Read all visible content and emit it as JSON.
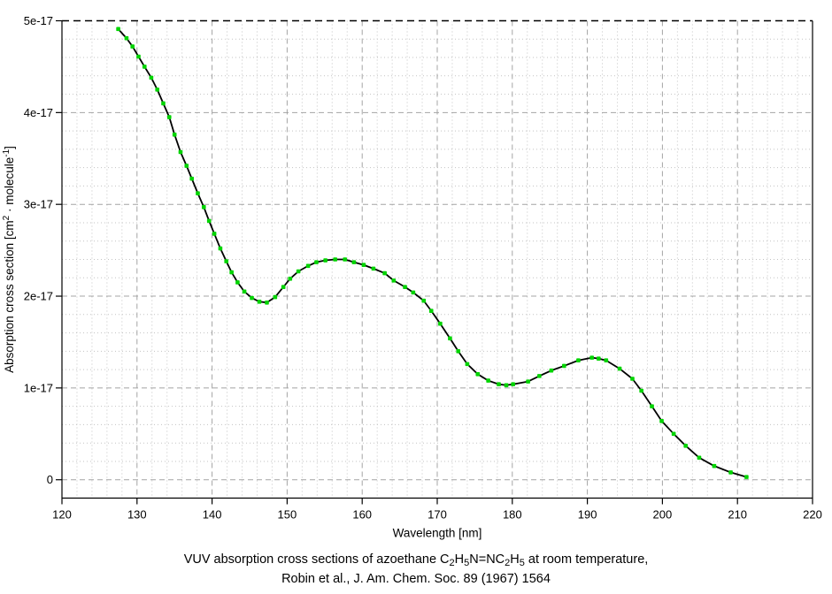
{
  "colors": {
    "background": "#ffffff",
    "axis": "#000000",
    "grid_major": "#a4a4a4",
    "grid_minor": "#c3c3c3",
    "top_border_dash": "#000000",
    "curve": "#000000",
    "marker": "#00d400",
    "text": "#000000"
  },
  "caption": {
    "line1_segments": [
      {
        "t": "VUV absorption cross sections of azoethane C"
      },
      {
        "sub": "2"
      },
      {
        "t": "H"
      },
      {
        "sub": "5"
      },
      {
        "t": "N=NC"
      },
      {
        "sub": "2"
      },
      {
        "t": "H"
      },
      {
        "sub": "5"
      },
      {
        "t": " at room temperature,"
      }
    ],
    "line2": "Robin et al., J. Am. Chem. Soc. 89 (1967) 1564"
  },
  "chart_data": {
    "type": "line",
    "xlabel": "Wavelength [nm]",
    "ylabel_segments": [
      {
        "t": "Absorption cross section [cm"
      },
      {
        "sup": "2"
      },
      {
        "t": " · molecule"
      },
      {
        "sup": "-1"
      },
      {
        "t": "]"
      }
    ],
    "x_range": [
      120,
      220
    ],
    "y_range_displayed": [
      -0.2,
      5.0
    ],
    "y_scale_note": "y values in units of 1e-17",
    "grid": {
      "major_dash": "6,4",
      "minor_dash": "1,3",
      "x_minor_step": 2,
      "y_minor_step": 0.2
    },
    "x_ticks": {
      "values": [
        120,
        130,
        140,
        150,
        160,
        170,
        180,
        190,
        200,
        210,
        220
      ],
      "labels": [
        "120",
        "130",
        "140",
        "150",
        "160",
        "170",
        "180",
        "190",
        "200",
        "210",
        "220"
      ]
    },
    "y_ticks": {
      "values": [
        0,
        1,
        2,
        3,
        4,
        5
      ],
      "labels": [
        "0",
        "1e-17",
        "2e-17",
        "3e-17",
        "4e-17",
        "5e-17"
      ]
    },
    "series": [
      {
        "line_color": "#000000",
        "marker_color": "#00d400",
        "points": [
          [
            127.5,
            4.91
          ],
          [
            128.6,
            4.81
          ],
          [
            129.4,
            4.72
          ],
          [
            130.2,
            4.61
          ],
          [
            131.0,
            4.5
          ],
          [
            131.9,
            4.38
          ],
          [
            132.7,
            4.25
          ],
          [
            133.5,
            4.1
          ],
          [
            134.3,
            3.95
          ],
          [
            135.0,
            3.76
          ],
          [
            135.8,
            3.57
          ],
          [
            136.6,
            3.42
          ],
          [
            137.3,
            3.28
          ],
          [
            138.1,
            3.12
          ],
          [
            138.9,
            2.97
          ],
          [
            139.6,
            2.82
          ],
          [
            140.3,
            2.68
          ],
          [
            141.1,
            2.52
          ],
          [
            141.9,
            2.38
          ],
          [
            142.6,
            2.26
          ],
          [
            143.4,
            2.15
          ],
          [
            144.3,
            2.05
          ],
          [
            145.3,
            1.98
          ],
          [
            146.3,
            1.94
          ],
          [
            147.3,
            1.93
          ],
          [
            148.4,
            1.99
          ],
          [
            149.5,
            2.1
          ],
          [
            150.4,
            2.19
          ],
          [
            151.5,
            2.27
          ],
          [
            152.8,
            2.33
          ],
          [
            153.9,
            2.37
          ],
          [
            155.1,
            2.39
          ],
          [
            156.4,
            2.4
          ],
          [
            157.7,
            2.4
          ],
          [
            158.9,
            2.37
          ],
          [
            160.2,
            2.34
          ],
          [
            161.5,
            2.3
          ],
          [
            163.0,
            2.25
          ],
          [
            164.2,
            2.17
          ],
          [
            165.7,
            2.1
          ],
          [
            166.8,
            2.04
          ],
          [
            168.2,
            1.95
          ],
          [
            169.2,
            1.84
          ],
          [
            170.4,
            1.7
          ],
          [
            171.7,
            1.54
          ],
          [
            172.8,
            1.4
          ],
          [
            174.0,
            1.26
          ],
          [
            175.4,
            1.15
          ],
          [
            176.8,
            1.08
          ],
          [
            178.2,
            1.04
          ],
          [
            179.2,
            1.03
          ],
          [
            180.1,
            1.04
          ],
          [
            182.1,
            1.07
          ],
          [
            183.6,
            1.13
          ],
          [
            185.2,
            1.19
          ],
          [
            186.9,
            1.24
          ],
          [
            188.8,
            1.3
          ],
          [
            190.6,
            1.33
          ],
          [
            191.5,
            1.32
          ],
          [
            192.5,
            1.3
          ],
          [
            194.3,
            1.21
          ],
          [
            196.0,
            1.1
          ],
          [
            197.2,
            0.97
          ],
          [
            198.6,
            0.8
          ],
          [
            199.9,
            0.64
          ],
          [
            201.5,
            0.5
          ],
          [
            203.1,
            0.37
          ],
          [
            204.9,
            0.24
          ],
          [
            206.9,
            0.15
          ],
          [
            209.1,
            0.08
          ],
          [
            211.2,
            0.03
          ]
        ]
      }
    ]
  }
}
